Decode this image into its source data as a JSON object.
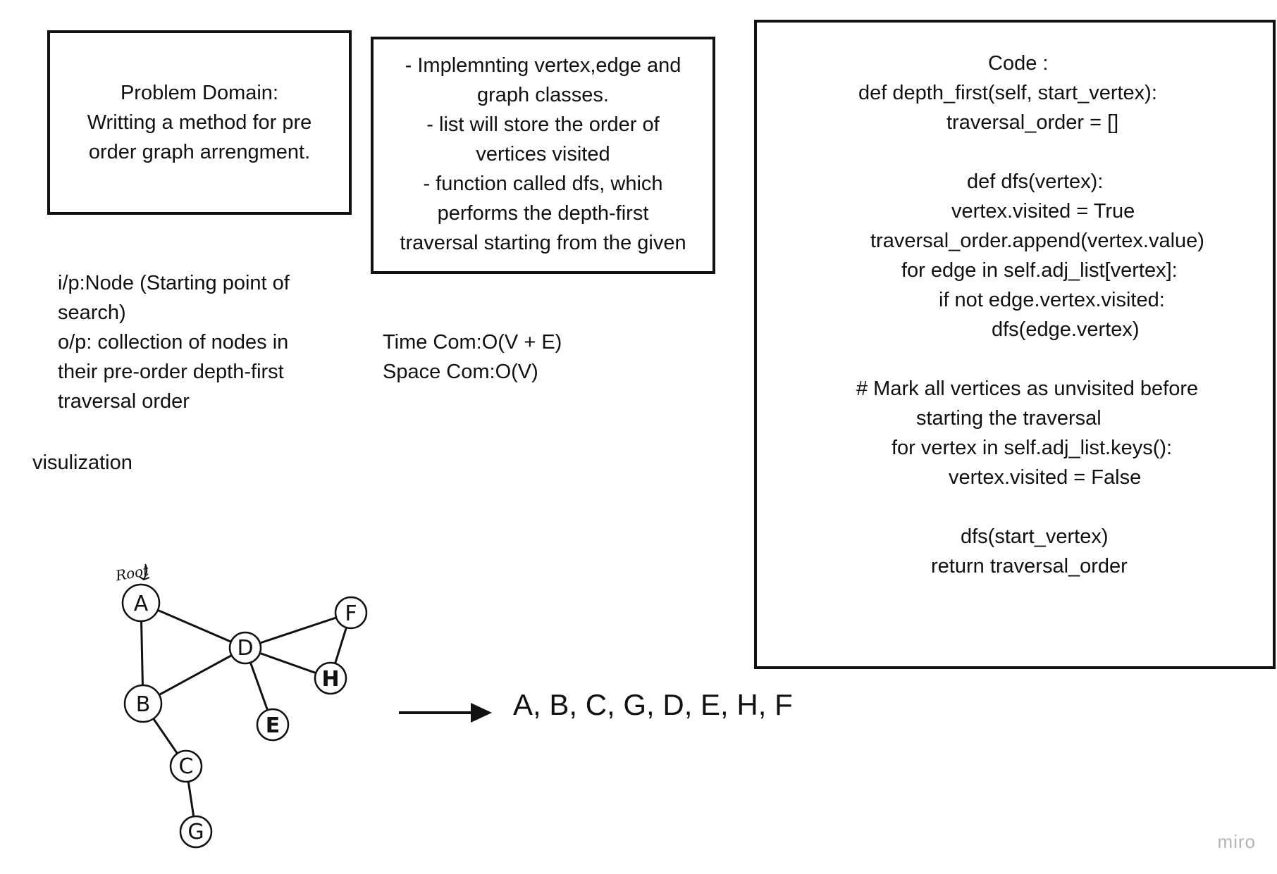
{
  "problem_box": {
    "text": "Problem Domain:\nWritting a method for pre\norder graph arrengment."
  },
  "approach_box": {
    "text": "- Implemnting vertex,edge and\ngraph classes.\n- list will store the order of\nvertices visited\n- function called dfs, which\nperforms the depth-first\ntraversal starting from the given"
  },
  "code_box": {
    "lines": [
      "Code :",
      "def depth_first(self, start_vertex):",
      "traversal_order = []",
      "",
      "def dfs(vertex):",
      "vertex.visited = True",
      "traversal_order.append(vertex.value)",
      "for edge in self.adj_list[vertex]:",
      "if not edge.vertex.visited:",
      "dfs(edge.vertex)",
      "",
      "# Mark all vertices as unvisited before",
      "starting the traversal",
      "for vertex in self.adj_list.keys():",
      "vertex.visited = False",
      "",
      "dfs(start_vertex)",
      "return traversal_order"
    ]
  },
  "io_text": "i/p:Node (Starting point of\nsearch)\no/p: collection of nodes in\ntheir pre-order depth-first\ntraversal order",
  "complexity_text": "Time Com:O(V + E)\nSpace Com:O(V)",
  "visualization_label": "visulization",
  "graph": {
    "root_label": "Root",
    "nodes": [
      {
        "id": "A",
        "label": "A"
      },
      {
        "id": "B",
        "label": "B"
      },
      {
        "id": "C",
        "label": "C"
      },
      {
        "id": "G",
        "label": "G"
      },
      {
        "id": "D",
        "label": "D"
      },
      {
        "id": "E",
        "label": "E"
      },
      {
        "id": "H",
        "label": "H"
      },
      {
        "id": "F",
        "label": "F"
      }
    ],
    "edges": [
      [
        "A",
        "B"
      ],
      [
        "A",
        "D"
      ],
      [
        "B",
        "D"
      ],
      [
        "B",
        "C"
      ],
      [
        "C",
        "G"
      ],
      [
        "D",
        "E"
      ],
      [
        "D",
        "H"
      ],
      [
        "D",
        "F"
      ],
      [
        "F",
        "H"
      ]
    ]
  },
  "traversal_result": "A, B, C, G, D, E, H, F",
  "watermark": "miro"
}
